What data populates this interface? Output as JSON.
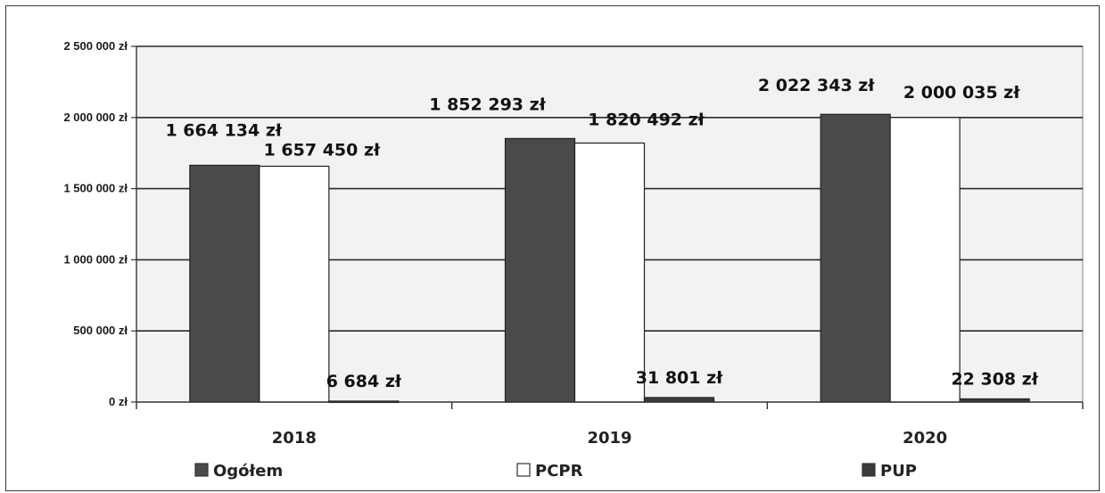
{
  "chart_data": {
    "type": "bar",
    "categories": [
      "2018",
      "2019",
      "2020"
    ],
    "series": [
      {
        "name": "Ogółem",
        "values": [
          1664134,
          1852293,
          2022343
        ],
        "labels": [
          "1 664 134 zł",
          "1 852 293 zł",
          "2 022 343 zł"
        ],
        "color": "#4a4a4a"
      },
      {
        "name": "PCPR",
        "values": [
          1657450,
          1820492,
          2000035
        ],
        "labels": [
          "1 657 450 zł",
          "1 820 492 zł",
          "2 000 035 zł"
        ],
        "color": "#ffffff"
      },
      {
        "name": "PUP",
        "values": [
          6684,
          31801,
          22308
        ],
        "labels": [
          "6 684 zł",
          "31 801 zł",
          "22 308 zł"
        ],
        "color": "#3a3a3a"
      }
    ],
    "yticks": [
      "0 zł",
      "500 000 zł",
      "1 000 000 zł",
      "1 500 000 zł",
      "2 000 000 zł",
      "2 500 000 zł"
    ],
    "ylim": [
      0,
      2500000
    ],
    "grid": true,
    "legend": "bottom",
    "background": "#f2f2f2"
  }
}
